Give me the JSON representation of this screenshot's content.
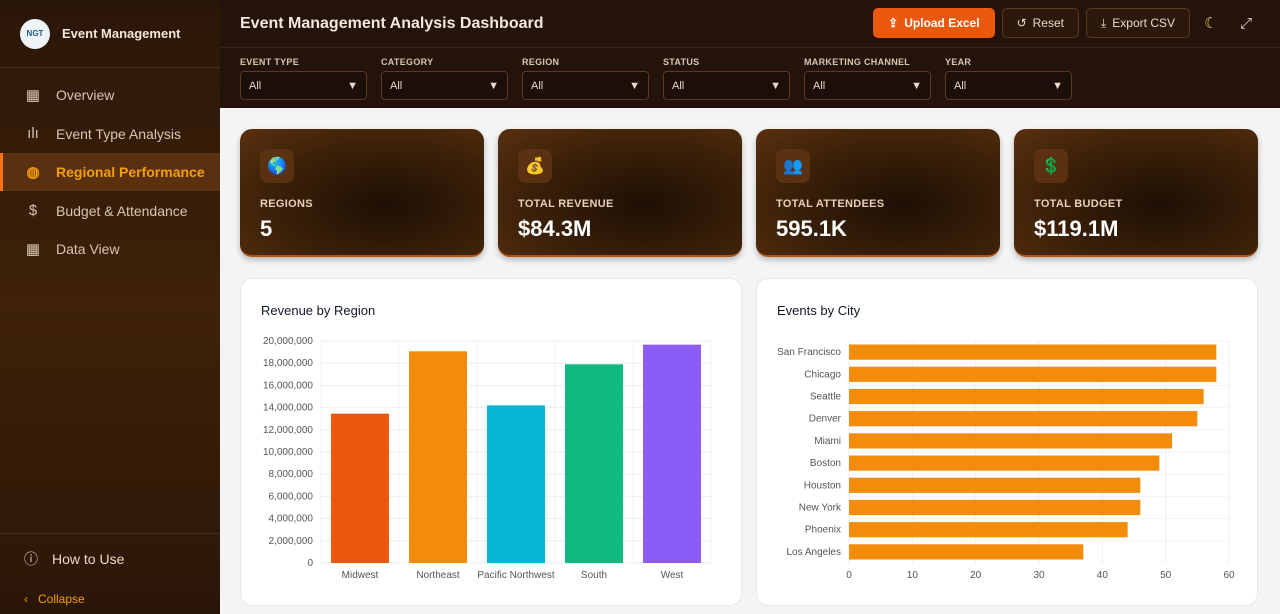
{
  "sidebar": {
    "brand": "Event Management",
    "logo_text": "NGT",
    "items": [
      {
        "label": "Overview",
        "icon": "grid-icon"
      },
      {
        "label": "Event Type Analysis",
        "icon": "bar-chart-icon"
      },
      {
        "label": "Regional Performance",
        "icon": "globe-icon",
        "active": true
      },
      {
        "label": "Budget & Attendance",
        "icon": "dollar-icon"
      },
      {
        "label": "Data View",
        "icon": "table-icon"
      }
    ],
    "how_to": "How to Use",
    "collapse": "Collapse"
  },
  "header": {
    "title": "Event Management Analysis Dashboard",
    "upload": "Upload Excel",
    "reset": "Reset",
    "export": "Export CSV"
  },
  "filters": [
    {
      "label": "EVENT TYPE",
      "value": "All"
    },
    {
      "label": "CATEGORY",
      "value": "All"
    },
    {
      "label": "REGION",
      "value": "All"
    },
    {
      "label": "STATUS",
      "value": "All"
    },
    {
      "label": "MARKETING CHANNEL",
      "value": "All"
    },
    {
      "label": "YEAR",
      "value": "All"
    }
  ],
  "kpis": [
    {
      "label": "REGIONS",
      "value": "5",
      "icon": "🌎"
    },
    {
      "label": "TOTAL REVENUE",
      "value": "$84.3M",
      "icon": "💰"
    },
    {
      "label": "TOTAL ATTENDEES",
      "value": "595.1K",
      "icon": "👥"
    },
    {
      "label": "TOTAL BUDGET",
      "value": "$119.1M",
      "icon": "💲"
    }
  ],
  "chart_data": [
    {
      "type": "bar",
      "title": "Revenue by Region",
      "categories": [
        "Midwest",
        "Northeast",
        "Pacific Northwest",
        "South",
        "West"
      ],
      "values": [
        13450000,
        19070000,
        14200000,
        17900000,
        19670000
      ],
      "colors": [
        "#ea580c",
        "#f28c0a",
        "#06b6d4",
        "#10b981",
        "#8b5cf6"
      ],
      "ylim": [
        0,
        20000000
      ],
      "yticks": [
        "0",
        "2,000,000",
        "4,000,000",
        "6,000,000",
        "8,000,000",
        "10,000,000",
        "12,000,000",
        "14,000,000",
        "16,000,000",
        "18,000,000",
        "20,000,000"
      ],
      "grid": true
    },
    {
      "type": "bar",
      "orientation": "horizontal",
      "title": "Events by City",
      "categories": [
        "San Francisco",
        "Chicago",
        "Seattle",
        "Denver",
        "Miami",
        "Boston",
        "Houston",
        "New York",
        "Phoenix",
        "Los Angeles"
      ],
      "values": [
        58,
        58,
        56,
        55,
        51,
        49,
        46,
        46,
        44,
        37
      ],
      "color": "#f28c0a",
      "xlim": [
        0,
        60
      ],
      "xticks": [
        "0",
        "10",
        "20",
        "30",
        "40",
        "50",
        "60"
      ],
      "grid": true
    }
  ]
}
